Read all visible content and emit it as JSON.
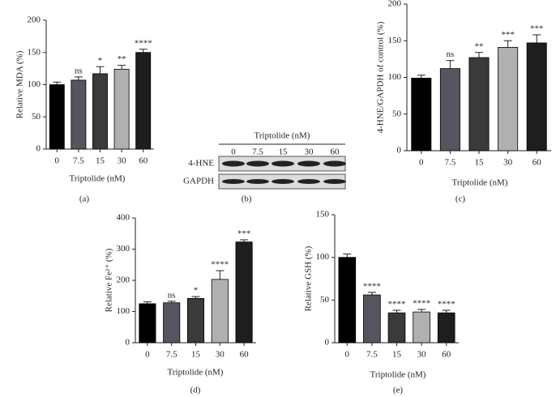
{
  "chart_data": [
    {
      "type": "bar",
      "panel_label": "(a)",
      "ylabel": "Relative MDA (%)",
      "xlabel": "Triptolide (nM)",
      "categories": [
        "0",
        "7.5",
        "15",
        "30",
        "60"
      ],
      "values": [
        100,
        107,
        117,
        124,
        150
      ],
      "errors": [
        4,
        5,
        11,
        6,
        5
      ],
      "annotations": [
        null,
        "ns",
        "*",
        "**",
        "****"
      ],
      "colors": [
        "#000000",
        "#55555f",
        "#3a3a3a",
        "#b0b0b0",
        "#1e1e1e"
      ],
      "ylim": [
        0,
        200
      ],
      "yticks": [
        0,
        50,
        100,
        150,
        200
      ]
    },
    {
      "type": "bar",
      "panel_label": "(c)",
      "ylabel": "4-HNE/GAPDH of control (%)",
      "xlabel": "Triptolide (nM)",
      "categories": [
        "0",
        "7.5",
        "15",
        "30",
        "60"
      ],
      "values": [
        99,
        112,
        127,
        141,
        147
      ],
      "errors": [
        4,
        11,
        7,
        9,
        11
      ],
      "annotations": [
        null,
        "ns",
        "**",
        "***",
        "***"
      ],
      "colors": [
        "#000000",
        "#55555f",
        "#3a3a3a",
        "#b0b0b0",
        "#1e1e1e"
      ],
      "ylim": [
        0,
        200
      ],
      "yticks": [
        0,
        50,
        100,
        150,
        200
      ]
    },
    {
      "type": "bar",
      "panel_label": "(d)",
      "ylabel": "Relative Fe²⁺ (%)",
      "xlabel": "Triptolide (nM)",
      "categories": [
        "0",
        "7.5",
        "15",
        "30",
        "60"
      ],
      "values": [
        125,
        128,
        142,
        203,
        323
      ],
      "errors": [
        6,
        5,
        6,
        28,
        7
      ],
      "annotations": [
        null,
        "ns",
        "*",
        "****",
        "***"
      ],
      "colors": [
        "#000000",
        "#55555f",
        "#3a3a3a",
        "#b0b0b0",
        "#1e1e1e"
      ],
      "ylim": [
        0,
        400
      ],
      "yticks": [
        0,
        100,
        200,
        300,
        400
      ]
    },
    {
      "type": "bar",
      "panel_label": "(e)",
      "ylabel": "Relative GSH (%)",
      "xlabel": "Triptolide (nM)",
      "categories": [
        "0",
        "7.5",
        "15",
        "30",
        "60"
      ],
      "values": [
        100,
        56,
        35,
        36,
        35
      ],
      "errors": [
        4,
        3,
        3,
        3,
        3
      ],
      "annotations": [
        null,
        "****",
        "****",
        "****",
        "****"
      ],
      "colors": [
        "#000000",
        "#55555f",
        "#3a3a3a",
        "#b0b0b0",
        "#1e1e1e"
      ],
      "ylim": [
        0,
        150
      ],
      "yticks": [
        0,
        50,
        100,
        150
      ]
    }
  ],
  "blot": {
    "title": "Triptolide (nM)",
    "lanes": [
      "0",
      "7.5",
      "15",
      "30",
      "60"
    ],
    "rows": [
      "4-HNE",
      "GAPDH"
    ],
    "panel_label": "(b)"
  }
}
